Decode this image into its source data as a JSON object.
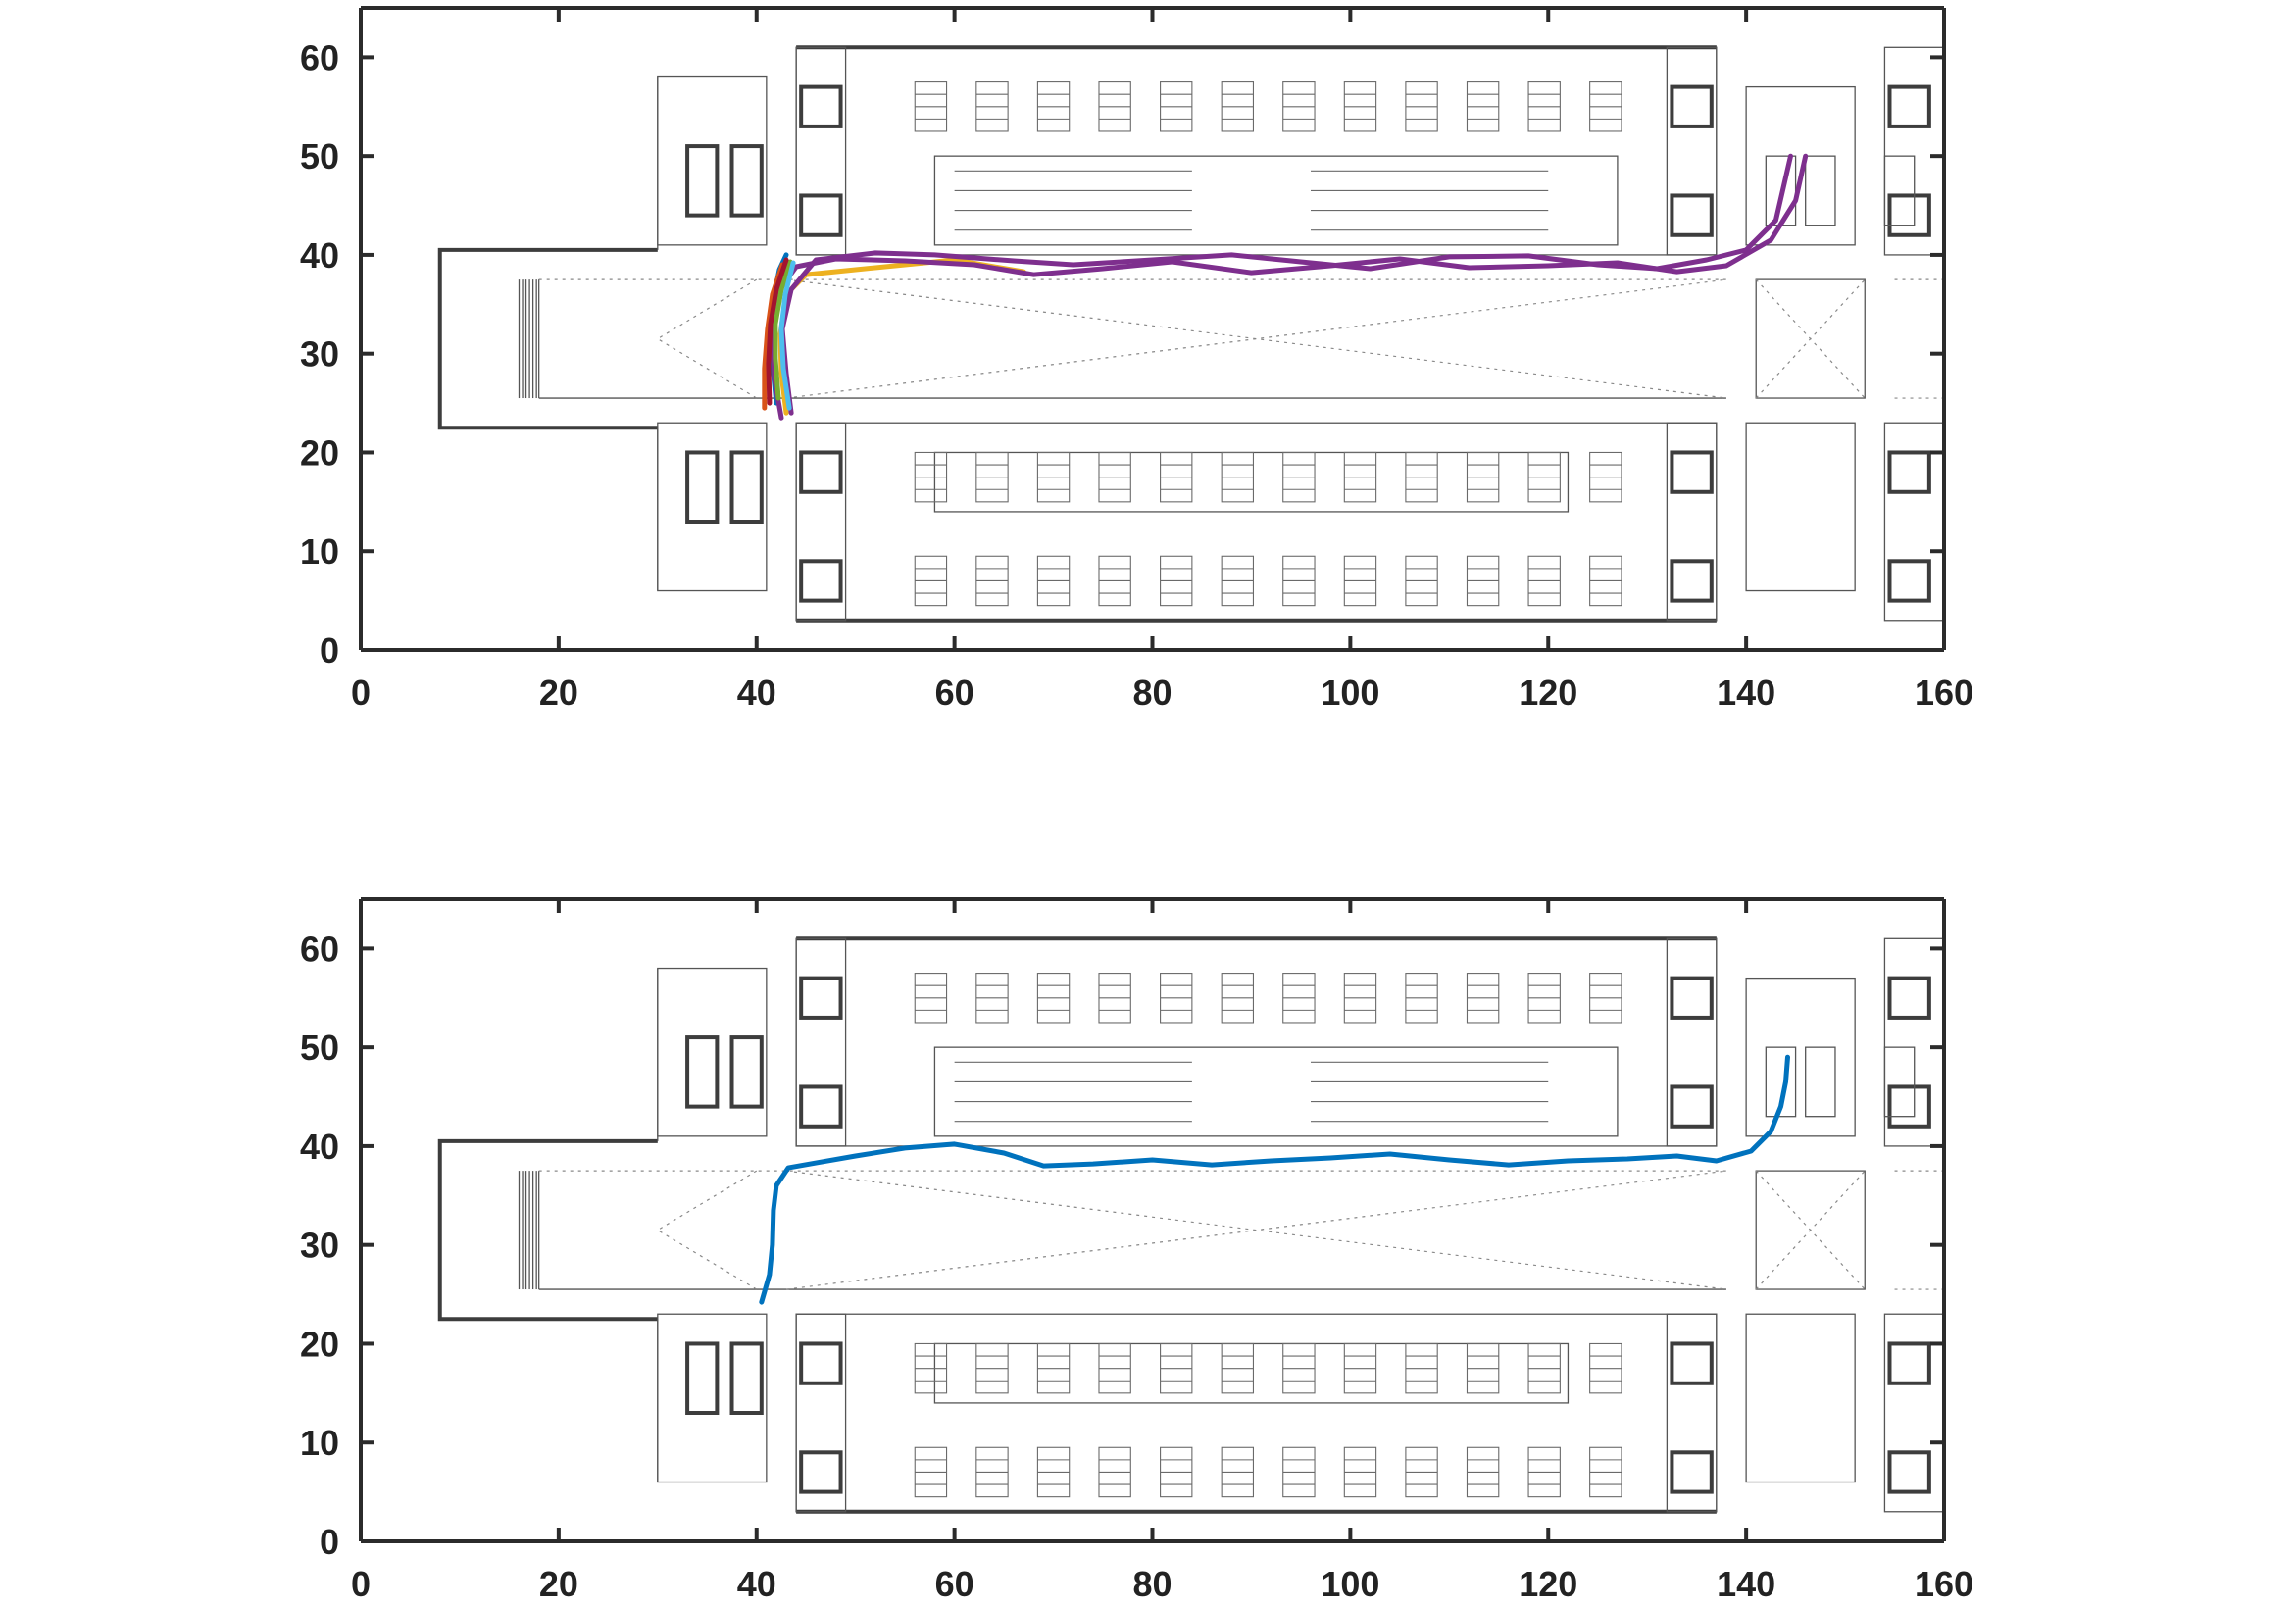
{
  "colors": {
    "axis": "#2b2b2b",
    "tick_text": "#222222",
    "floorplan": "#555555",
    "palette": [
      "#0072BD",
      "#D95319",
      "#EDB120",
      "#7E2F8E",
      "#77AC30",
      "#4DBEEE",
      "#A2142F"
    ]
  },
  "chart_data": [
    {
      "type": "line",
      "background": "building floor plan",
      "xlim": [
        0,
        160
      ],
      "ylim": [
        0,
        65
      ],
      "xticks": [
        0,
        20,
        40,
        60,
        80,
        100,
        120,
        140,
        160
      ],
      "yticks": [
        0,
        10,
        20,
        30,
        40,
        50,
        60
      ],
      "xtick_labels": [
        "0",
        "20",
        "40",
        "60",
        "80",
        "100",
        "120",
        "140",
        "160"
      ],
      "ytick_labels": [
        "0",
        "10",
        "20",
        "30",
        "40",
        "50",
        "60"
      ],
      "grid": false,
      "series": [
        {
          "color": "#0072BD",
          "x": [
            42.0,
            41.6,
            41.5,
            41.9,
            42.3,
            43.0
          ],
          "y": [
            25.0,
            29.0,
            33.0,
            36.5,
            38.5,
            40.0
          ]
        },
        {
          "color": "#D95319",
          "x": [
            40.8,
            40.8,
            41.1,
            41.6,
            42.6
          ],
          "y": [
            24.5,
            28.5,
            32.5,
            36.0,
            39.0
          ]
        },
        {
          "color": "#EDB120",
          "x": [
            43.0,
            42.5,
            42.4,
            43.0,
            45.0,
            50.0,
            55.0,
            60.0,
            64.0,
            67.0
          ],
          "y": [
            24.0,
            28.0,
            32.0,
            36.0,
            38.0,
            38.5,
            39.0,
            39.5,
            38.8,
            38.3
          ]
        },
        {
          "color": "#7E2F8E",
          "x": [
            42.5,
            41.8,
            41.6,
            42.0,
            44.0,
            48.0,
            55.0,
            62.0,
            68.0,
            75.0,
            82.0,
            90.0,
            98.0,
            105.0,
            112.0,
            120.0,
            127.0,
            133.0,
            138.0,
            142.5,
            145.0,
            146.0
          ],
          "y": [
            23.5,
            27.5,
            32.0,
            36.0,
            38.8,
            39.6,
            39.4,
            39.0,
            38.0,
            38.6,
            39.3,
            38.2,
            38.9,
            39.6,
            38.7,
            38.9,
            39.2,
            38.3,
            38.9,
            41.5,
            45.5,
            50.0
          ]
        },
        {
          "color": "#7E2F8E",
          "x": [
            43.5,
            43.0,
            42.6,
            43.5,
            46.0,
            52.0,
            58.0,
            66.0,
            72.0,
            80.0,
            88.0,
            95.0,
            102.0,
            110.0,
            118.0,
            125.0,
            131.0,
            136.0,
            140.0,
            143.0,
            144.5
          ],
          "y": [
            24.0,
            28.0,
            32.5,
            36.5,
            39.5,
            40.2,
            40.0,
            39.4,
            39.0,
            39.5,
            40.0,
            39.3,
            38.6,
            39.8,
            39.9,
            39.0,
            38.6,
            39.5,
            40.5,
            43.5,
            50.0
          ]
        },
        {
          "color": "#77AC30",
          "x": [
            42.2,
            41.9,
            41.9,
            42.5,
            43.4
          ],
          "y": [
            25.5,
            29.5,
            33.0,
            36.5,
            39.3
          ]
        },
        {
          "color": "#4DBEEE",
          "x": [
            43.3,
            42.7,
            42.5,
            42.9,
            43.7
          ],
          "y": [
            24.5,
            28.5,
            32.5,
            36.0,
            39.2
          ]
        },
        {
          "color": "#A2142F",
          "x": [
            41.3,
            41.2,
            41.4,
            42.0,
            43.0
          ],
          "y": [
            25.0,
            29.0,
            33.0,
            36.5,
            39.5
          ]
        }
      ]
    },
    {
      "type": "line",
      "background": "building floor plan",
      "xlim": [
        0,
        160
      ],
      "ylim": [
        0,
        65
      ],
      "xticks": [
        0,
        20,
        40,
        60,
        80,
        100,
        120,
        140,
        160
      ],
      "yticks": [
        0,
        10,
        20,
        30,
        40,
        50,
        60
      ],
      "xtick_labels": [
        "0",
        "20",
        "40",
        "60",
        "80",
        "100",
        "120",
        "140",
        "160"
      ],
      "ytick_labels": [
        "0",
        "10",
        "20",
        "30",
        "40",
        "50",
        "60"
      ],
      "grid": false,
      "series": [
        {
          "color": "#0072BD",
          "x": [
            40.5,
            41.3,
            41.6,
            41.7,
            42.0,
            43.2,
            46.0,
            50.0,
            55.0,
            60.0,
            65.0,
            69.0,
            74.0,
            80.0,
            86.0,
            92.0,
            98.0,
            104.0,
            110.0,
            116.0,
            122.0,
            128.0,
            133.0,
            137.0,
            140.5,
            142.5,
            143.5,
            144.0,
            144.2
          ],
          "y": [
            24.2,
            27.0,
            30.0,
            33.5,
            36.0,
            37.8,
            38.3,
            39.0,
            39.8,
            40.2,
            39.3,
            38.0,
            38.2,
            38.6,
            38.1,
            38.5,
            38.8,
            39.2,
            38.6,
            38.1,
            38.5,
            38.7,
            39.0,
            38.5,
            39.5,
            41.5,
            44.0,
            46.5,
            49.0
          ]
        }
      ]
    }
  ]
}
